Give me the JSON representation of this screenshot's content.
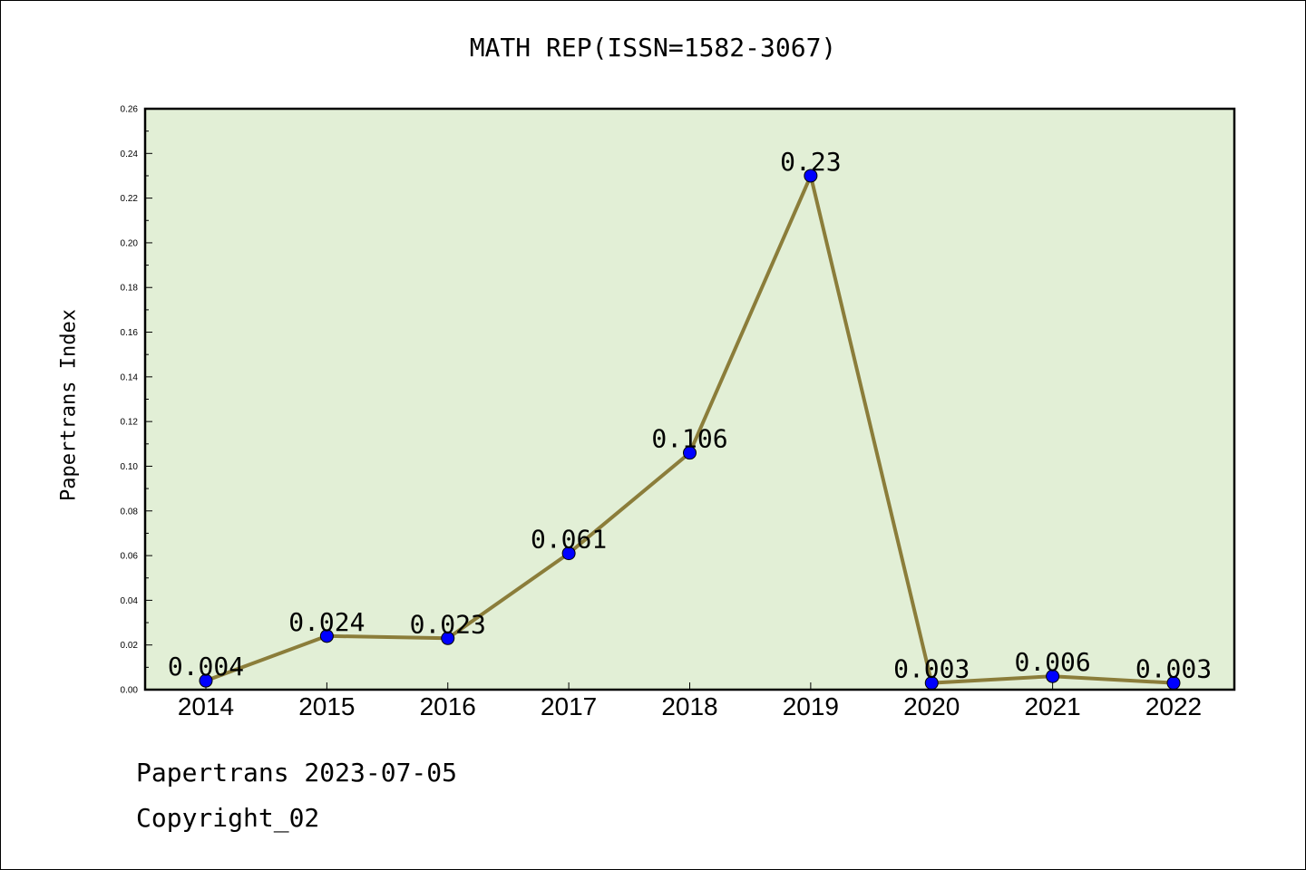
{
  "colors": {
    "plot_bg": "#e2efd6",
    "line": "#8b7d3a",
    "marker": "#0000ff",
    "frame": "#000000"
  },
  "footer": {
    "date_line": "Papertrans 2023-07-05",
    "copyright": "Copyright_02"
  },
  "chart_data": {
    "type": "line",
    "title": "MATH REP(ISSN=1582-3067)",
    "xlabel": "",
    "ylabel": "Papertrans Index",
    "categories": [
      "2014",
      "2015",
      "2016",
      "2017",
      "2018",
      "2019",
      "2020",
      "2021",
      "2022"
    ],
    "series": [
      {
        "values": [
          0.004,
          0.024,
          0.023,
          0.061,
          0.106,
          0.23,
          0.003,
          0.006,
          0.003
        ]
      }
    ],
    "data_labels": [
      "0.004",
      "0.024",
      "0.023",
      "0.061",
      "0.106",
      "0.23",
      "0.003",
      "0.006",
      "0.003"
    ],
    "ylim": [
      0,
      0.26
    ],
    "yticks": [
      "0.00",
      "0.02",
      "0.04",
      "0.06",
      "0.08",
      "0.10",
      "0.12",
      "0.14",
      "0.16",
      "0.18",
      "0.20",
      "0.22",
      "0.24",
      "0.26"
    ],
    "grid": false,
    "legend": "none"
  }
}
